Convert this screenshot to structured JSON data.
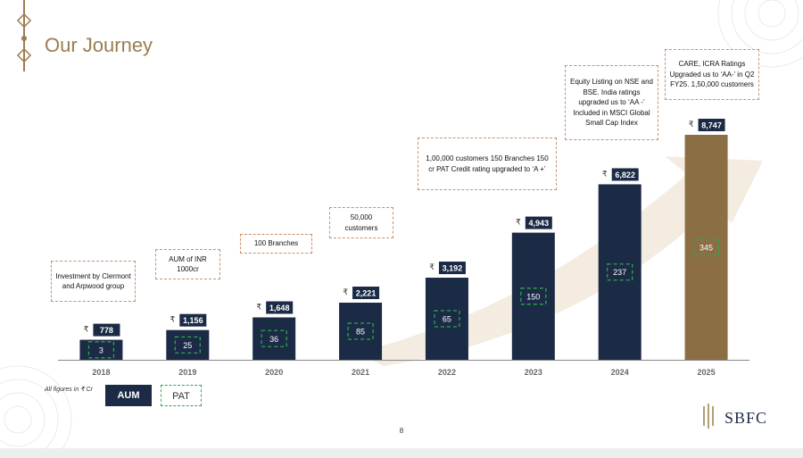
{
  "title": "Our Journey",
  "page_number": "8",
  "logo_text": "SBFC",
  "currency_symbol": "₹",
  "legend": {
    "note": "All figures in ₹ Cr",
    "aum_label": "AUM",
    "pat_label": "PAT"
  },
  "colors": {
    "aum_bar": "#1b2a45",
    "aum_highlight": "#8b6e44",
    "pat_border": "#2ea64f",
    "title": "#9b7d4f",
    "annotation_border": "#c9916b"
  },
  "annotations": [
    {
      "year": "2018",
      "text": "Investment by Clermont and Arpwood group"
    },
    {
      "year": "2019",
      "text": "AUM of INR 1000cr"
    },
    {
      "year": "2020",
      "text": "100 Branches"
    },
    {
      "year": "2021",
      "text": "50,000 customers"
    },
    {
      "year": "2022",
      "text": "1,00,000 customers 150 Branches 150 cr PAT Credit rating upgraded to ‘A +’"
    },
    {
      "year": "2024",
      "text": "Equity Listing on NSE and BSE. India ratings upgraded us to ‘AA -’ Included in MSCI Global Small Cap Index"
    },
    {
      "year": "2025",
      "text": "CARE, ICRA Ratings Upgraded us to ‘AA-’ in Q2 FY25. 1,50,000 customers"
    }
  ],
  "chart_data": {
    "type": "bar",
    "title": "",
    "xlabel": "",
    "ylabel": "",
    "categories": [
      "2018",
      "2019",
      "2020",
      "2021",
      "2022",
      "2023",
      "2024",
      "2025"
    ],
    "series": [
      {
        "name": "AUM",
        "values": [
          778,
          1156,
          1648,
          2221,
          3192,
          4943,
          6822,
          8747
        ],
        "labels": [
          "778",
          "1,156",
          "1,648",
          "2,221",
          "3,192",
          "4,943",
          "6,822",
          "8,747"
        ]
      },
      {
        "name": "PAT",
        "values": [
          3,
          25,
          36,
          85,
          65,
          150,
          237,
          345
        ],
        "labels": [
          "3",
          "25",
          "36",
          "85",
          "65",
          "150",
          "237",
          "345"
        ]
      }
    ],
    "highlight_category": "2025",
    "ylim": [
      0,
      8747
    ],
    "units": "₹ Cr"
  }
}
